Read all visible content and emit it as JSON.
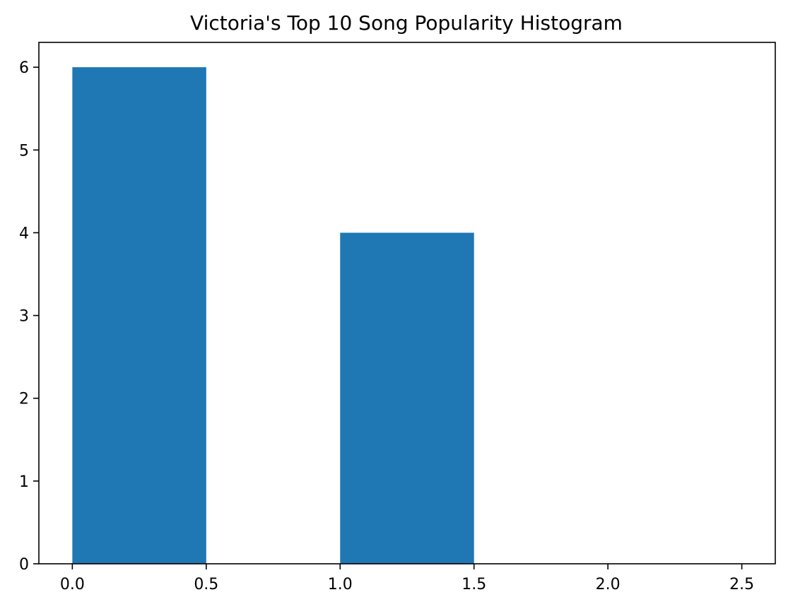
{
  "chart_data": {
    "type": "bar",
    "title": "Victoria's Top 10 Song Popularity Histogram",
    "xlabel": "",
    "ylabel": "",
    "bins": [
      {
        "start": 0.0,
        "end": 0.5,
        "count": 6
      },
      {
        "start": 0.5,
        "end": 1.0,
        "count": 0
      },
      {
        "start": 1.0,
        "end": 1.5,
        "count": 4
      },
      {
        "start": 1.5,
        "end": 2.0,
        "count": 0
      },
      {
        "start": 2.0,
        "end": 2.5,
        "count": 0
      }
    ],
    "xlim": [
      -0.125,
      2.625
    ],
    "ylim": [
      0,
      6.3
    ],
    "xticks": [
      0.0,
      0.5,
      1.0,
      1.5,
      2.0,
      2.5
    ],
    "xtick_labels": [
      "0.0",
      "0.5",
      "1.0",
      "1.5",
      "2.0",
      "2.5"
    ],
    "yticks": [
      0,
      1,
      2,
      3,
      4,
      5,
      6
    ],
    "ytick_labels": [
      "0",
      "1",
      "2",
      "3",
      "4",
      "5",
      "6"
    ],
    "bar_color": "#1f77b4",
    "grid": false,
    "legend": "none"
  }
}
